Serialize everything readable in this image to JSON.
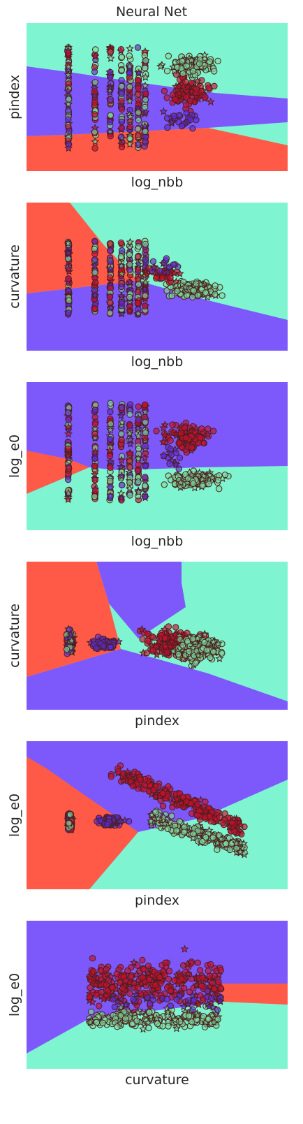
{
  "title": "Neural Net",
  "colors": {
    "class_a": "#ff5a48",
    "class_b": "#7d59fb",
    "class_c": "#7ef5d0",
    "edge": "#4a1f1f",
    "red_point": "#c8102e",
    "purple_point": "#5b2bd6",
    "green_point": "#7ddc9f"
  },
  "chart_data": [
    {
      "type": "scatter",
      "xlabel": "log_nbb",
      "ylabel": "pindex",
      "regions": [
        "class_b",
        "class_a",
        "class_c"
      ],
      "series": [
        {
          "color": "red_point",
          "markers": [
            "circle",
            "star"
          ]
        },
        {
          "color": "purple_point",
          "markers": [
            "circle",
            "star"
          ]
        },
        {
          "color": "green_point",
          "markers": [
            "circle",
            "star"
          ]
        }
      ]
    },
    {
      "type": "scatter",
      "xlabel": "log_nbb",
      "ylabel": "curvature",
      "regions": [
        "class_a",
        "class_c",
        "class_b"
      ],
      "series": [
        {
          "color": "red_point",
          "markers": [
            "circle",
            "star"
          ]
        },
        {
          "color": "purple_point",
          "markers": [
            "circle",
            "star"
          ]
        },
        {
          "color": "green_point",
          "markers": [
            "circle",
            "star"
          ]
        }
      ]
    },
    {
      "type": "scatter",
      "xlabel": "log_nbb",
      "ylabel": "log_e0",
      "regions": [
        "class_b",
        "class_a",
        "class_c"
      ],
      "series": [
        {
          "color": "red_point",
          "markers": [
            "circle",
            "star"
          ]
        },
        {
          "color": "purple_point",
          "markers": [
            "circle",
            "star"
          ]
        },
        {
          "color": "green_point",
          "markers": [
            "circle",
            "star"
          ]
        }
      ]
    },
    {
      "type": "scatter",
      "xlabel": "pindex",
      "ylabel": "curvature",
      "regions": [
        "class_a",
        "class_b",
        "class_c"
      ],
      "series": [
        {
          "color": "red_point",
          "markers": [
            "circle",
            "star"
          ]
        },
        {
          "color": "purple_point",
          "markers": [
            "circle",
            "star"
          ]
        },
        {
          "color": "green_point",
          "markers": [
            "circle",
            "star"
          ]
        }
      ]
    },
    {
      "type": "scatter",
      "xlabel": "pindex",
      "ylabel": "log_e0",
      "regions": [
        "class_b",
        "class_a",
        "class_c"
      ],
      "series": [
        {
          "color": "red_point",
          "markers": [
            "circle",
            "star"
          ]
        },
        {
          "color": "purple_point",
          "markers": [
            "circle",
            "star"
          ]
        },
        {
          "color": "green_point",
          "markers": [
            "circle",
            "star"
          ]
        }
      ]
    },
    {
      "type": "scatter",
      "xlabel": "curvature",
      "ylabel": "log_e0",
      "regions": [
        "class_b",
        "class_c",
        "class_a"
      ],
      "series": [
        {
          "color": "red_point",
          "markers": [
            "circle",
            "star"
          ]
        },
        {
          "color": "purple_point",
          "markers": [
            "circle",
            "star"
          ]
        },
        {
          "color": "green_point",
          "markers": [
            "circle",
            "star"
          ]
        }
      ]
    }
  ]
}
